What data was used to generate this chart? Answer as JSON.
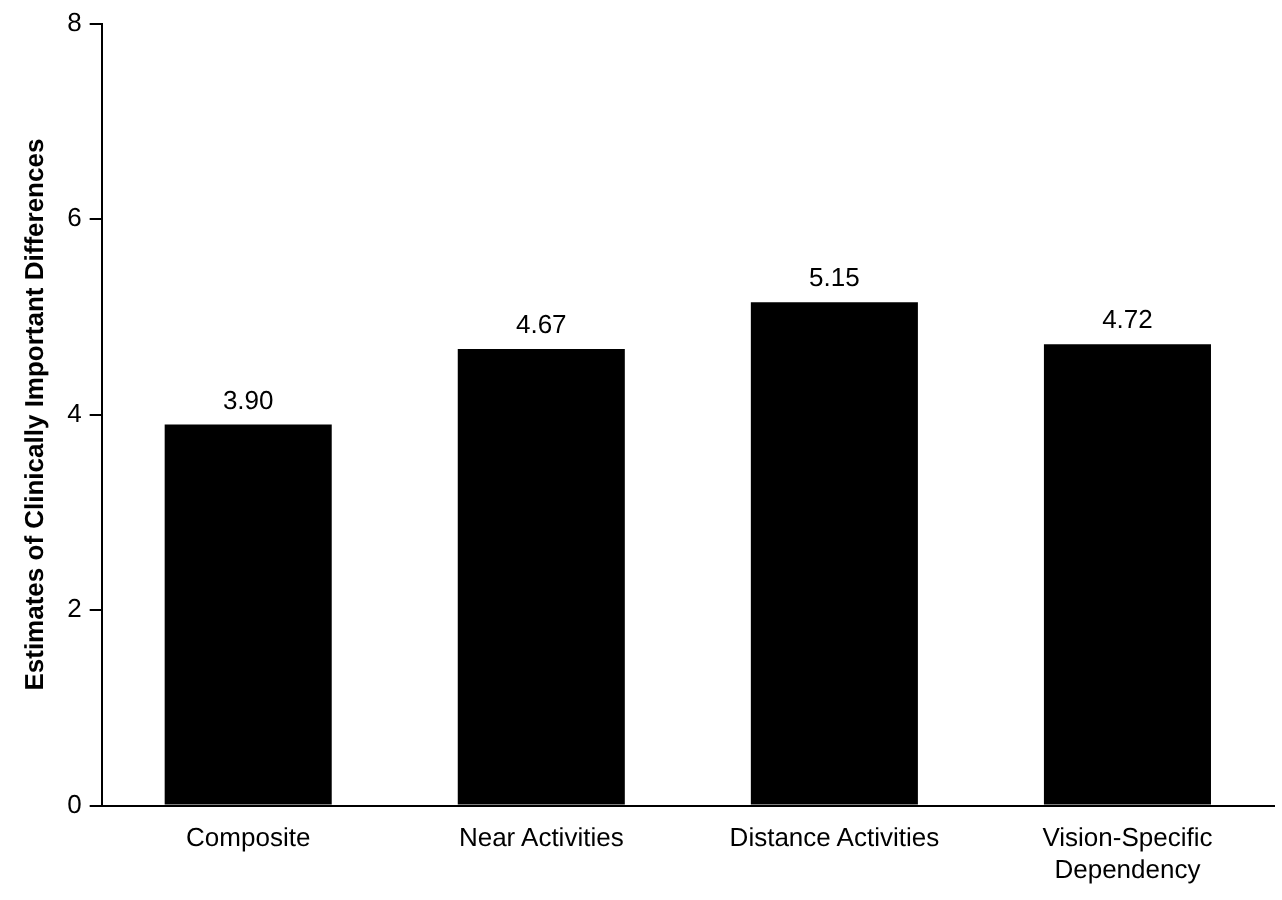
{
  "chart_data": {
    "type": "bar",
    "ylabel": "Estimates of Clinically Important Differences",
    "categories": [
      "Composite",
      "Near Activities",
      "Distance Activities",
      "Vision-Specific Dependency"
    ],
    "values": [
      3.9,
      4.67,
      5.15,
      4.72
    ],
    "value_labels": [
      "3.90",
      "4.67",
      "5.15",
      "4.72"
    ],
    "color": "#000000",
    "ylim": [
      0,
      8
    ],
    "yticks": [
      0,
      2,
      4,
      6,
      8
    ],
    "grid": false,
    "legend": false
  }
}
